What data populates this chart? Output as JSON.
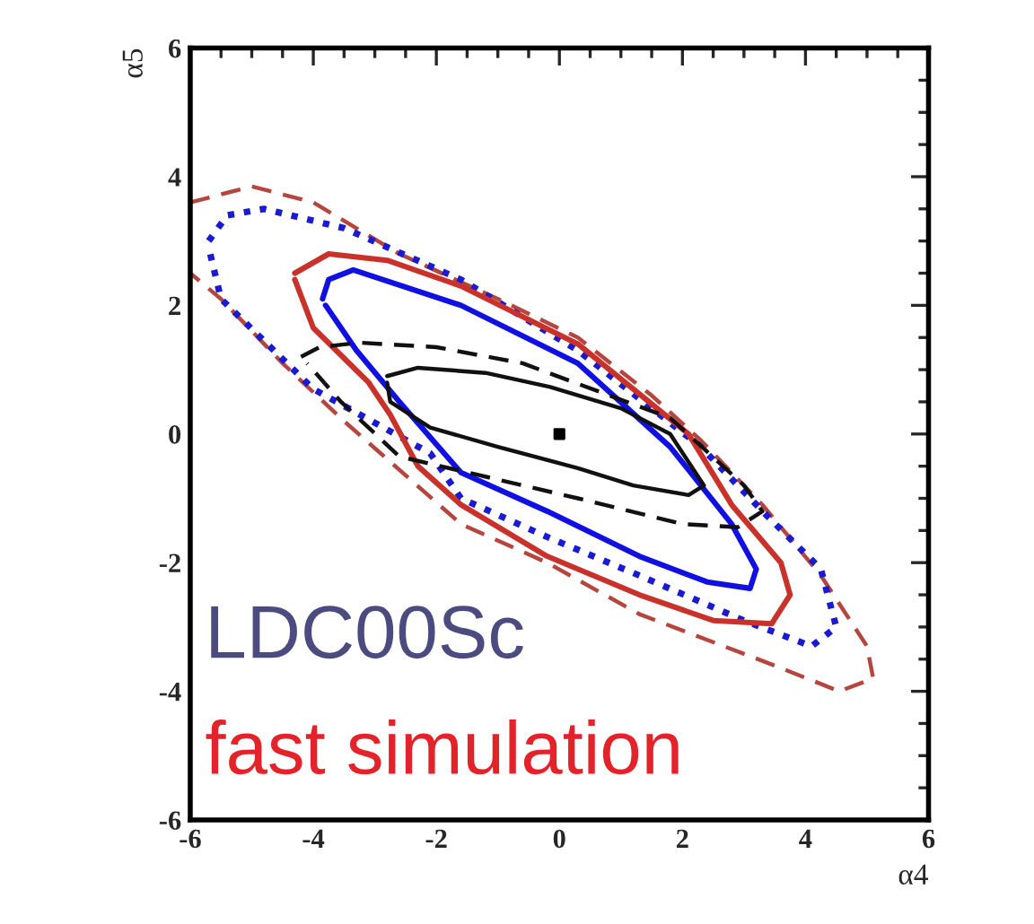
{
  "chart_data": {
    "type": "line",
    "xlabel": "α4",
    "ylabel": "α5",
    "xlim": [
      -6,
      6
    ],
    "ylim": [
      -6,
      6
    ],
    "xticks": [
      -6,
      -4,
      -2,
      0,
      2,
      4,
      6
    ],
    "yticks": [
      -6,
      -4,
      -2,
      0,
      2,
      4,
      6
    ],
    "grid": false,
    "legend": false,
    "annotations": [
      "LDC00Sc",
      "fast simulation"
    ],
    "series": [
      {
        "color": "#b5453f",
        "line_style": "dashed",
        "x": [
          -6,
          -5.0,
          -4.0,
          -2.6,
          -1,
          0.3,
          1.5,
          2.3,
          3.3,
          4.25,
          5.0,
          5.1,
          4.55,
          3.5,
          1.3,
          -0.2,
          -1.6,
          -3.5,
          -4.5,
          -5.5,
          -6
        ],
        "values": [
          3.6,
          3.85,
          3.6,
          2.8,
          2.1,
          1.5,
          0.6,
          -0.1,
          -1.1,
          -2.2,
          -3.3,
          -3.8,
          -4.0,
          -3.6,
          -2.8,
          -2.0,
          -1.4,
          0.2,
          1.1,
          2.1,
          2.5
        ]
      },
      {
        "color": "#1a1ad0",
        "line_style": "dotted",
        "x": [
          -5.7,
          -5.4,
          -4.8,
          -3.5,
          -1.6,
          0.3,
          2.3,
          3.3,
          4.25,
          4.5,
          4.1,
          3.0,
          1.3,
          -0.2,
          -1.6,
          -2.1,
          -4.0,
          -5.5,
          -5.7
        ],
        "values": [
          3.0,
          3.4,
          3.5,
          3.2,
          2.4,
          1.3,
          -0.2,
          -1.2,
          -2.1,
          -3.0,
          -3.3,
          -2.9,
          -2.2,
          -1.6,
          -1.0,
          -0.3,
          0.7,
          2.1,
          2.9
        ]
      },
      {
        "color": "#c8322a",
        "line_style": "solid",
        "x": [
          -4.3,
          -3.75,
          -2.8,
          -1.6,
          0.3,
          2.1,
          2.8,
          3.6,
          3.75,
          3.45,
          2.5,
          1.3,
          -0.2,
          -1.6,
          -2.3,
          -2.75,
          -3.1,
          -4.0,
          -4.3
        ],
        "values": [
          2.5,
          2.8,
          2.7,
          2.3,
          1.4,
          0,
          -1.1,
          -2.0,
          -2.5,
          -2.95,
          -2.9,
          -2.5,
          -1.9,
          -1.1,
          -0.5,
          0.3,
          0.8,
          1.65,
          2.4
        ]
      },
      {
        "color": "#1010e0",
        "line_style": "solid",
        "x": [
          -3.85,
          -3.75,
          -3.35,
          -1.6,
          0.3,
          1.8,
          2.8,
          3.2,
          3.1,
          2.4,
          1.3,
          -0.2,
          -1.6,
          -2.6,
          -3.3,
          -3.8
        ],
        "values": [
          2.1,
          2.4,
          2.55,
          2.0,
          1.1,
          -0.2,
          -1.4,
          -2.1,
          -2.4,
          -2.3,
          -1.9,
          -1.2,
          -0.6,
          0.5,
          1.3,
          2.0
        ]
      },
      {
        "color": "#111111",
        "line_style": "dashed",
        "x": [
          -4.2,
          -3.9,
          -3.25,
          -2,
          -0.6,
          1.8,
          3.0,
          3.3,
          2.9,
          2.0,
          0.3,
          -2.6,
          -3.55,
          -4.1
        ],
        "values": [
          1.2,
          1.35,
          1.42,
          1.35,
          1.1,
          0.25,
          -0.8,
          -1.2,
          -1.45,
          -1.4,
          -1.0,
          -0.35,
          0.5,
          1.1
        ]
      },
      {
        "color": "#111111",
        "line_style": "solid",
        "x": [
          -2.8,
          -2.3,
          -1.2,
          -0.15,
          1.0,
          1.8,
          2.35,
          2.1,
          1.2,
          0.3,
          -1.0,
          -2.1,
          -2.75,
          -2.8
        ],
        "values": [
          0.9,
          1.03,
          0.95,
          0.73,
          0.4,
          0,
          -0.8,
          -0.95,
          -0.8,
          -0.53,
          -0.2,
          0.1,
          0.5,
          0.8
        ]
      },
      {
        "type": "scatter",
        "marker": "square",
        "color": "#000000",
        "x": [
          0
        ],
        "values": [
          0
        ]
      }
    ]
  }
}
